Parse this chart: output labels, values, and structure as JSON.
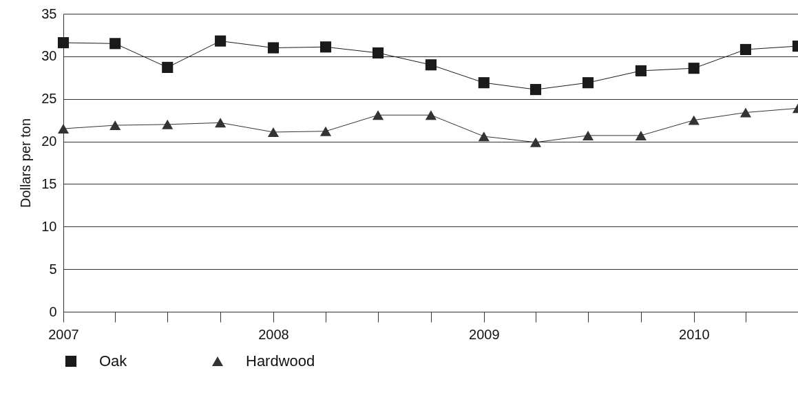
{
  "chart_data": {
    "type": "line",
    "ylabel": "Dollars per ton",
    "x": [
      "2007-01",
      "2007-04",
      "2007-07",
      "2007-10",
      "2008-01",
      "2008-04",
      "2008-07",
      "2008-10",
      "2009-01",
      "2009-04",
      "2009-07",
      "2009-10",
      "2010-01",
      "2010-04",
      "2010-07"
    ],
    "series": [
      {
        "name": "Oak",
        "color": "#1a1a1a",
        "marker": "square",
        "values": [
          31.6,
          31.5,
          28.7,
          31.8,
          31.0,
          31.1,
          30.4,
          29.0,
          26.9,
          26.1,
          26.9,
          28.3,
          28.6,
          30.8,
          31.2
        ]
      },
      {
        "name": "Hardwood",
        "color": "#333333",
        "marker": "triangle",
        "values": [
          21.5,
          21.9,
          22.0,
          22.2,
          21.1,
          21.2,
          23.1,
          23.1,
          20.6,
          19.9,
          20.7,
          20.7,
          22.5,
          23.4,
          23.9
        ]
      }
    ],
    "xlim": [
      "2007-01",
      "2010-07"
    ],
    "xticks": [
      {
        "value": "2007-01",
        "label": "2007"
      },
      {
        "value": "2007-04",
        "label": null
      },
      {
        "value": "2007-07",
        "label": null
      },
      {
        "value": "2007-10",
        "label": null
      },
      {
        "value": "2008-01",
        "label": "2008"
      },
      {
        "value": "2008-04",
        "label": null
      },
      {
        "value": "2008-07",
        "label": null
      },
      {
        "value": "2008-10",
        "label": null
      },
      {
        "value": "2009-01",
        "label": "2009"
      },
      {
        "value": "2009-04",
        "label": null
      },
      {
        "value": "2009-07",
        "label": null
      },
      {
        "value": "2009-10",
        "label": null
      },
      {
        "value": "2010-01",
        "label": "2010"
      },
      {
        "value": "2010-04",
        "label": null
      },
      {
        "value": "2010-07",
        "label": null
      }
    ],
    "ylim": [
      0,
      35
    ],
    "yticks": [
      0,
      5,
      10,
      15,
      20,
      25,
      30,
      35
    ],
    "grid": "y",
    "legend": "bottom",
    "line_style": "solid"
  }
}
